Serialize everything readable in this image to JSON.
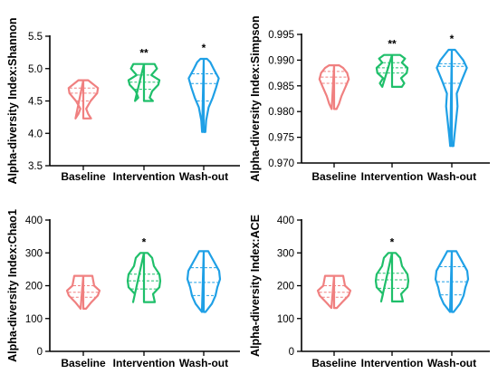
{
  "colors": {
    "Baseline": "#f08080",
    "Intervention": "#1fbf6a",
    "Wash-out": "#1fa0e6"
  },
  "chart_data": [
    {
      "type": "violin",
      "ylabel": "Alpha-diversity Index:Shannon",
      "categories": [
        "Baseline",
        "Intervention",
        "Wash-out"
      ],
      "ylim": [
        3.5,
        5.5
      ],
      "yticks": [
        "3.5",
        "4.0",
        "4.5",
        "5.0",
        "5.5"
      ],
      "significance": [
        "",
        "**",
        "*"
      ],
      "series": [
        {
          "name": "Baseline",
          "profile": [
            [
              4.23,
              0.48
            ],
            [
              4.3,
              0.3
            ],
            [
              4.38,
              0.18
            ],
            [
              4.5,
              0.45
            ],
            [
              4.62,
              0.85
            ],
            [
              4.7,
              0.9
            ],
            [
              4.78,
              0.5
            ],
            [
              4.82,
              0.3
            ]
          ],
          "quartiles": [
            4.5,
            4.62,
            4.7
          ]
        },
        {
          "name": "Intervention",
          "profile": [
            [
              4.5,
              0.55
            ],
            [
              4.55,
              0.35
            ],
            [
              4.65,
              0.5
            ],
            [
              4.75,
              0.88
            ],
            [
              4.82,
              0.95
            ],
            [
              4.9,
              0.45
            ],
            [
              5.0,
              0.8
            ],
            [
              5.07,
              0.65
            ]
          ],
          "quartiles": [
            4.68,
            4.79,
            4.9
          ]
        },
        {
          "name": "Wash-out",
          "profile": [
            [
              4.02,
              0.1
            ],
            [
              4.2,
              0.15
            ],
            [
              4.4,
              0.3
            ],
            [
              4.55,
              0.55
            ],
            [
              4.7,
              0.75
            ],
            [
              4.85,
              0.92
            ],
            [
              5.0,
              0.6
            ],
            [
              5.1,
              0.4
            ],
            [
              5.15,
              0.2
            ]
          ],
          "quartiles": [
            4.5,
            4.77,
            4.92
          ]
        }
      ]
    },
    {
      "type": "violin",
      "ylabel": "Alpha-diversity Index:Simpson",
      "categories": [
        "Baseline",
        "Intervention",
        "Wash-out"
      ],
      "ylim": [
        0.97,
        0.995
      ],
      "yticks": [
        "0.970",
        "0.975",
        "0.980",
        "0.985",
        "0.990",
        "0.995"
      ],
      "significance": [
        "",
        "**",
        "*"
      ],
      "series": [
        {
          "name": "Baseline",
          "profile": [
            [
              0.9805,
              0.15
            ],
            [
              0.9815,
              0.3
            ],
            [
              0.983,
              0.45
            ],
            [
              0.9848,
              0.7
            ],
            [
              0.9863,
              0.9
            ],
            [
              0.9875,
              0.8
            ],
            [
              0.9885,
              0.55
            ],
            [
              0.989,
              0.3
            ]
          ],
          "quartiles": [
            0.9855,
            0.9867,
            0.9878
          ]
        },
        {
          "name": "Intervention",
          "profile": [
            [
              0.9848,
              0.6
            ],
            [
              0.9855,
              0.75
            ],
            [
              0.9865,
              0.55
            ],
            [
              0.9875,
              0.9
            ],
            [
              0.9885,
              0.95
            ],
            [
              0.9895,
              0.6
            ],
            [
              0.9903,
              0.8
            ],
            [
              0.991,
              0.5
            ]
          ],
          "quartiles": [
            0.9875,
            0.9885,
            0.9895
          ]
        },
        {
          "name": "Wash-out",
          "profile": [
            [
              0.9733,
              0.1
            ],
            [
              0.975,
              0.15
            ],
            [
              0.978,
              0.25
            ],
            [
              0.981,
              0.35
            ],
            [
              0.9835,
              0.3
            ],
            [
              0.986,
              0.6
            ],
            [
              0.9885,
              0.92
            ],
            [
              0.99,
              0.7
            ],
            [
              0.992,
              0.2
            ]
          ],
          "quartiles": [
            0.9855,
            0.9888,
            0.9893
          ]
        }
      ]
    },
    {
      "type": "violin",
      "ylabel": "Alpha-diversity Index:Chao1",
      "categories": [
        "Baseline",
        "Intervention",
        "Wash-out"
      ],
      "ylim": [
        0,
        400
      ],
      "yticks": [
        "0",
        "100",
        "200",
        "300",
        "400"
      ],
      "significance": [
        "",
        "*",
        ""
      ],
      "series": [
        {
          "name": "Baseline",
          "profile": [
            [
              130,
              0.15
            ],
            [
              150,
              0.45
            ],
            [
              170,
              0.8
            ],
            [
              185,
              0.9
            ],
            [
              200,
              0.6
            ],
            [
              215,
              0.55
            ],
            [
              230,
              0.5
            ]
          ],
          "quartiles": [
            165,
            180,
            200
          ]
        },
        {
          "name": "Intervention",
          "profile": [
            [
              150,
              0.6
            ],
            [
              175,
              0.5
            ],
            [
              195,
              0.85
            ],
            [
              215,
              0.9
            ],
            [
              235,
              0.85
            ],
            [
              260,
              0.55
            ],
            [
              285,
              0.45
            ],
            [
              300,
              0.2
            ]
          ],
          "quartiles": [
            190,
            215,
            235
          ]
        },
        {
          "name": "Wash-out",
          "profile": [
            [
              120,
              0.1
            ],
            [
              145,
              0.45
            ],
            [
              170,
              0.65
            ],
            [
              195,
              0.75
            ],
            [
              220,
              0.9
            ],
            [
              245,
              0.85
            ],
            [
              270,
              0.6
            ],
            [
              295,
              0.35
            ],
            [
              305,
              0.25
            ]
          ],
          "quartiles": [
            170,
            210,
            255
          ]
        }
      ]
    },
    {
      "type": "violin",
      "ylabel": "Alpha-diversity Index:ACE",
      "categories": [
        "Baseline",
        "Intervention",
        "Wash-out"
      ],
      "ylim": [
        0,
        400
      ],
      "yticks": [
        "0",
        "100",
        "200",
        "300",
        "400"
      ],
      "significance": [
        "",
        "*",
        ""
      ],
      "series": [
        {
          "name": "Baseline",
          "profile": [
            [
              132,
              0.15
            ],
            [
              150,
              0.45
            ],
            [
              170,
              0.8
            ],
            [
              185,
              0.9
            ],
            [
              200,
              0.6
            ],
            [
              215,
              0.55
            ],
            [
              230,
              0.5
            ]
          ],
          "quartiles": [
            165,
            180,
            200
          ]
        },
        {
          "name": "Intervention",
          "profile": [
            [
              152,
              0.6
            ],
            [
              175,
              0.5
            ],
            [
              195,
              0.85
            ],
            [
              215,
              0.9
            ],
            [
              235,
              0.85
            ],
            [
              260,
              0.55
            ],
            [
              285,
              0.45
            ],
            [
              300,
              0.2
            ]
          ],
          "quartiles": [
            192,
            218,
            238
          ]
        },
        {
          "name": "Wash-out",
          "profile": [
            [
              120,
              0.1
            ],
            [
              145,
              0.45
            ],
            [
              170,
              0.65
            ],
            [
              195,
              0.75
            ],
            [
              220,
              0.9
            ],
            [
              245,
              0.85
            ],
            [
              270,
              0.6
            ],
            [
              295,
              0.35
            ],
            [
              305,
              0.25
            ]
          ],
          "quartiles": [
            172,
            212,
            258
          ]
        }
      ]
    }
  ]
}
